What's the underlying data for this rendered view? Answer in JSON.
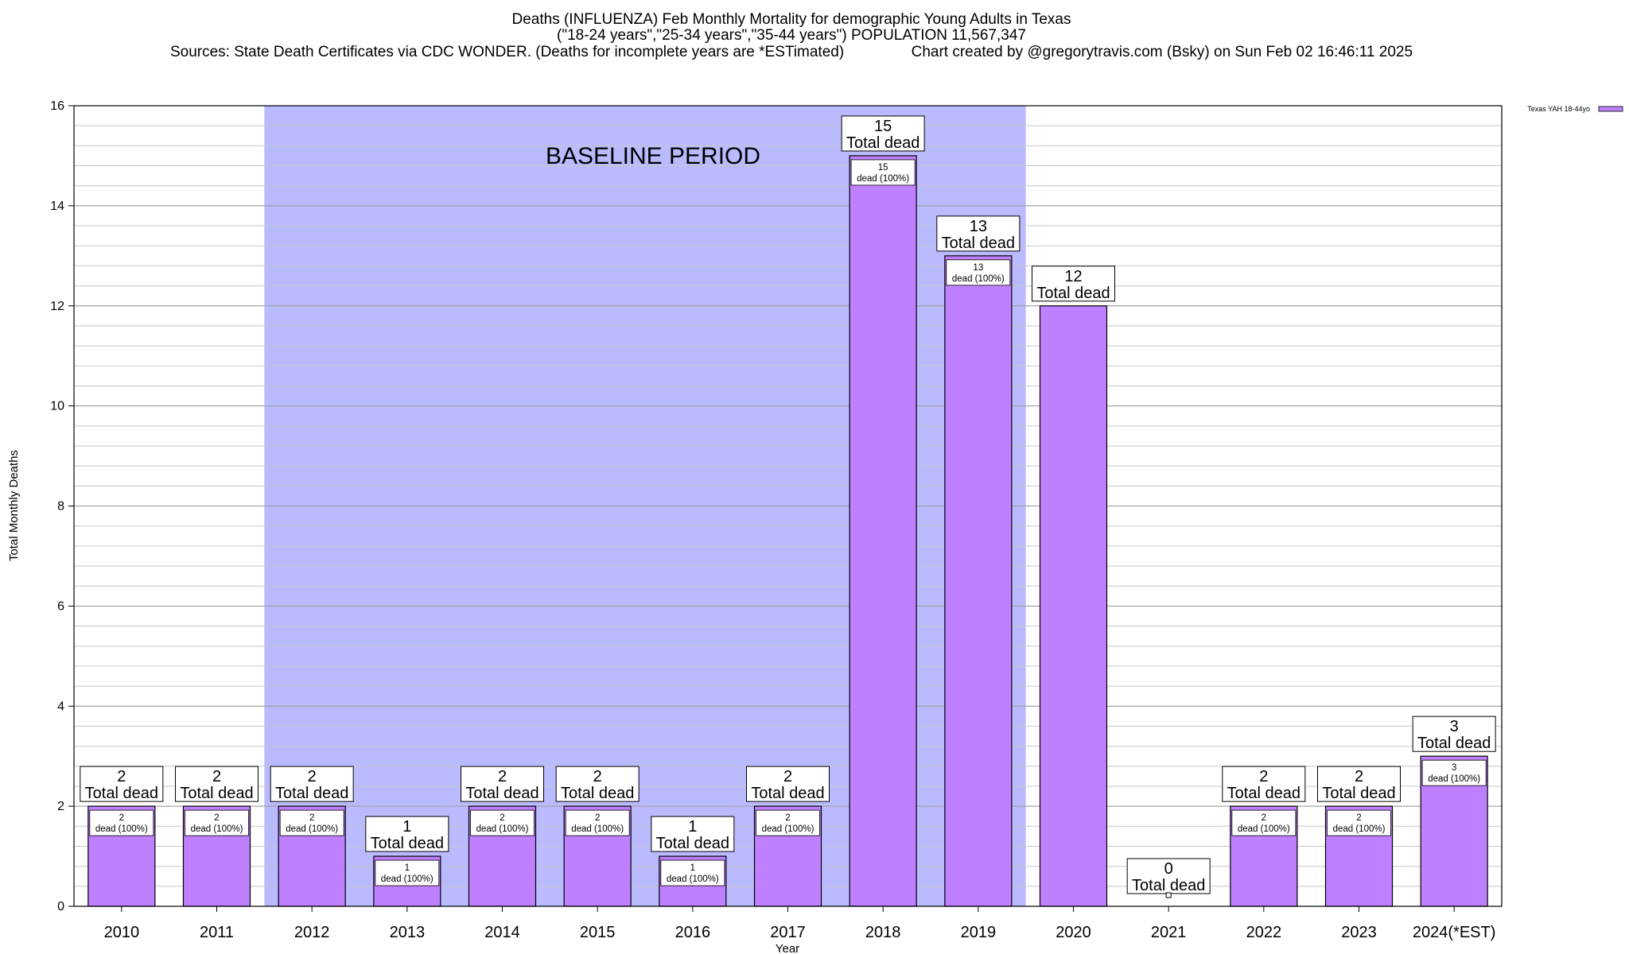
{
  "title": {
    "line1": "Deaths (INFLUENZA) Feb Monthly Mortality for demographic Young Adults in Texas",
    "line2": "(\"18-24 years\",\"25-34 years\",\"35-44 years\") POPULATION 11,567,347",
    "line3": "Sources: State Death Certificates via CDC WONDER. (Deaths for incomplete years are *ESTimated)                Chart created by @gregorytravis.com (Bsky) on Sun Feb 02 16:46:11 2025"
  },
  "colors": {
    "bar_fill": "#bf80ff",
    "baseline_band": "#babaff",
    "grid": "#c8c8c8",
    "axis": "#000000"
  },
  "chart_data": {
    "type": "bar",
    "xlabel": "Year",
    "ylabel": "Total Monthly Deaths",
    "ylim": [
      0,
      16
    ],
    "y_ticks": [
      0,
      2,
      4,
      6,
      8,
      10,
      12,
      14,
      16
    ],
    "y_minor_step": 0.4,
    "grid": true,
    "legend": {
      "position": "top-right",
      "entries": [
        "Texas YAH 18-44yo"
      ]
    },
    "categories": [
      "2010",
      "2011",
      "2012",
      "2013",
      "2014",
      "2015",
      "2016",
      "2017",
      "2018",
      "2019",
      "2020",
      "2021",
      "2022",
      "2023",
      "2024(*EST)"
    ],
    "series": [
      {
        "name": "Texas YAH 18-44yo",
        "values": [
          2,
          2,
          2,
          1,
          2,
          2,
          1,
          2,
          15,
          13,
          12,
          0,
          2,
          2,
          3
        ]
      }
    ],
    "shaded_region": {
      "label": "BASELINE PERIOD",
      "from_category": "2012",
      "to_category": "2019"
    },
    "total_label_suffix": "Total dead",
    "inner_label_suffix": "dead (100%)",
    "inner_label_omitted_for": [
      "2020",
      "2021"
    ]
  }
}
